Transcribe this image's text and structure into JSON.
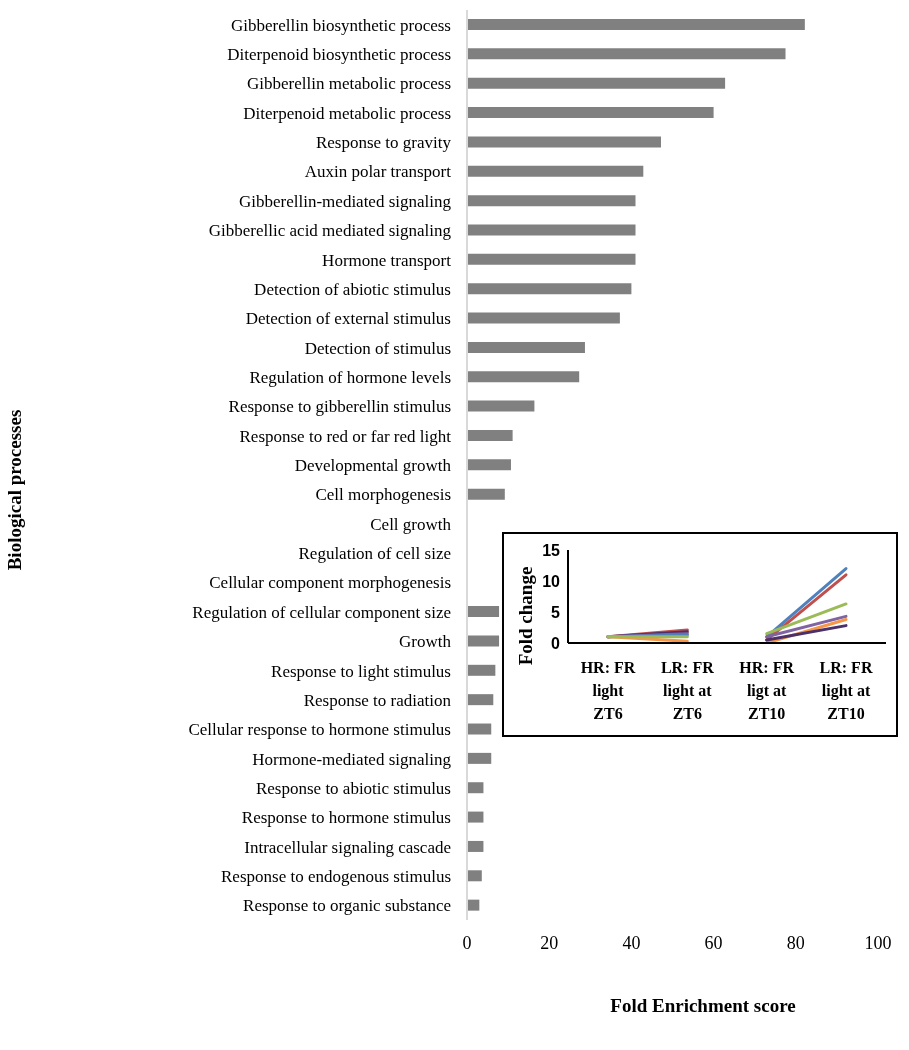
{
  "chart_data": [
    {
      "type": "bar",
      "orientation": "horizontal",
      "xlabel": "Fold Enrichment score",
      "ylabel": "Biological processes",
      "categories": [
        "Gibberellin biosynthetic process",
        "Diterpenoid biosynthetic process",
        "Gibberellin metabolic process",
        "Diterpenoid metabolic process",
        "Response to gravity",
        "Auxin polar transport",
        "Gibberellin-mediated signaling",
        "Gibberellic acid mediated signaling",
        "Hormone transport",
        "Detection of abiotic stimulus",
        "Detection of external stimulus",
        "Detection of stimulus",
        "Regulation of hormone levels",
        "Response to gibberellin stimulus",
        "Response to red or far red light",
        "Developmental growth",
        "Cell morphogenesis",
        "Cell growth",
        "Regulation of cell size",
        "Cellular component morphogenesis",
        "Regulation of cellular component size",
        "Growth",
        "Response to light stimulus",
        "Response to radiation",
        "Cellular response to hormone stimulus",
        "Hormone-mediated signaling",
        "Response to abiotic stimulus",
        "Response to hormone stimulus",
        "Intracellular signaling cascade",
        "Response to endogenous stimulus",
        "Response to organic substance"
      ],
      "values": [
        82.2,
        77.5,
        62.8,
        60,
        47.2,
        42.9,
        41,
        41,
        41,
        40,
        37.2,
        28.7,
        27.3,
        16.4,
        11.1,
        10.7,
        9.2,
        null,
        null,
        null,
        7.8,
        7.8,
        6.9,
        6.4,
        5.9,
        5.9,
        4,
        4,
        4,
        3.6,
        3
      ],
      "color": "#808080",
      "xlim": [
        0,
        100
      ],
      "xticks": [
        0,
        20,
        40,
        60,
        80,
        100
      ]
    },
    {
      "type": "line",
      "ylabel": "Fold change",
      "categories": [
        "HR: FR light ZT6",
        "LR: FR light at ZT6",
        "HR: FR ligt at ZT10",
        "LR: FR light at ZT10"
      ],
      "series": [
        {
          "color": "#c0504d",
          "values": [
            1,
            2.1,
            null,
            null
          ]
        },
        {
          "color": "#4b3069",
          "values": [
            1,
            1.8,
            null,
            null
          ]
        },
        {
          "color": "#8064a2",
          "values": [
            1,
            1.5,
            null,
            null
          ]
        },
        {
          "color": "#4f81bd",
          "values": [
            1,
            1.3,
            null,
            null
          ]
        },
        {
          "color": "#f79646",
          "values": [
            1,
            0.3,
            null,
            null
          ]
        },
        {
          "color": "#9bbb59",
          "values": [
            1,
            1,
            null,
            null
          ]
        },
        {
          "color": "#4f81bd",
          "values": [
            null,
            null,
            1,
            12
          ]
        },
        {
          "color": "#c0504d",
          "values": [
            null,
            null,
            0.5,
            11
          ]
        },
        {
          "color": "#9bbb59",
          "values": [
            null,
            null,
            1.5,
            6.3
          ]
        },
        {
          "color": "#8064a2",
          "values": [
            null,
            null,
            1,
            4.3
          ]
        },
        {
          "color": "#f79646",
          "values": [
            null,
            null,
            0,
            3.8
          ]
        },
        {
          "color": "#4b3069",
          "values": [
            null,
            null,
            0.5,
            2.8
          ]
        }
      ],
      "ylim": [
        0,
        15
      ],
      "yticks": [
        0,
        5,
        10,
        15
      ]
    }
  ]
}
